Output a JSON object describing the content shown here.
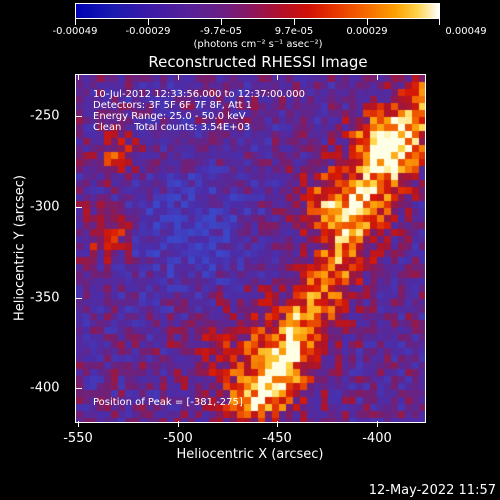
{
  "colorbar": {
    "ticks": [
      "-0.00049",
      "-0.00029",
      "-9.7e-05",
      "9.7e-05",
      "0.00029",
      "0.00049"
    ],
    "units": "(photons cm⁻² s⁻¹ asec⁻²)"
  },
  "title": "Reconstructed RHESSI Image",
  "info": {
    "time": "10-Jul-2012 12:33:56.000 to 12:37:00.000",
    "detectors": "Detectors: 3F 5F 6F 7F 8F, Att 1",
    "energy": "Energy Range: 25.0 - 50.0 keV",
    "clean": "Clean    Total counts: 3.54E+03",
    "peak": "Position of Peak = [-381,-275]"
  },
  "xaxis": {
    "label": "Heliocentric X (arcsec)",
    "ticks": [
      "-550",
      "-500",
      "-450",
      "-400"
    ]
  },
  "yaxis": {
    "label": "Heliocentric Y (arcsec)",
    "ticks": [
      "-250",
      "-300",
      "-350",
      "-400"
    ]
  },
  "footer": {
    "date": "12-May-2022 11:57"
  }
}
